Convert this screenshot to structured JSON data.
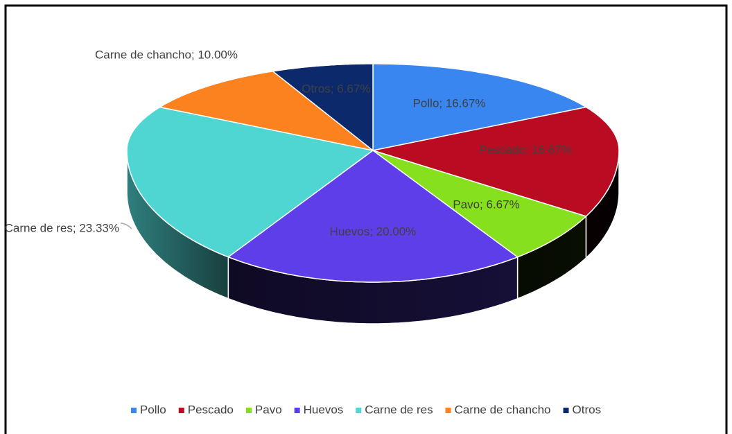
{
  "chart_data": {
    "type": "pie3d",
    "categories": [
      "Pollo",
      "Pescado",
      "Pavo",
      "Huevos",
      "Carne de res",
      "Carne de chancho",
      "Otros"
    ],
    "values": [
      16.67,
      16.67,
      6.67,
      20.0,
      23.33,
      10.0,
      6.67
    ],
    "value_labels": [
      "Pollo; 16.67%",
      "Pescado; 16.67%",
      "Pavo; 6.67%",
      "Huevos; 20.00%",
      "Carne de res; 23.33%",
      "Carne de chancho; 10.00%",
      "Otros; 6.67%"
    ],
    "colors": [
      "#3a86f0",
      "#b90c23",
      "#86e01e",
      "#5e3ee8",
      "#4fd6d3",
      "#fc8220",
      "#0c2a6b"
    ],
    "legend": "bottom"
  }
}
